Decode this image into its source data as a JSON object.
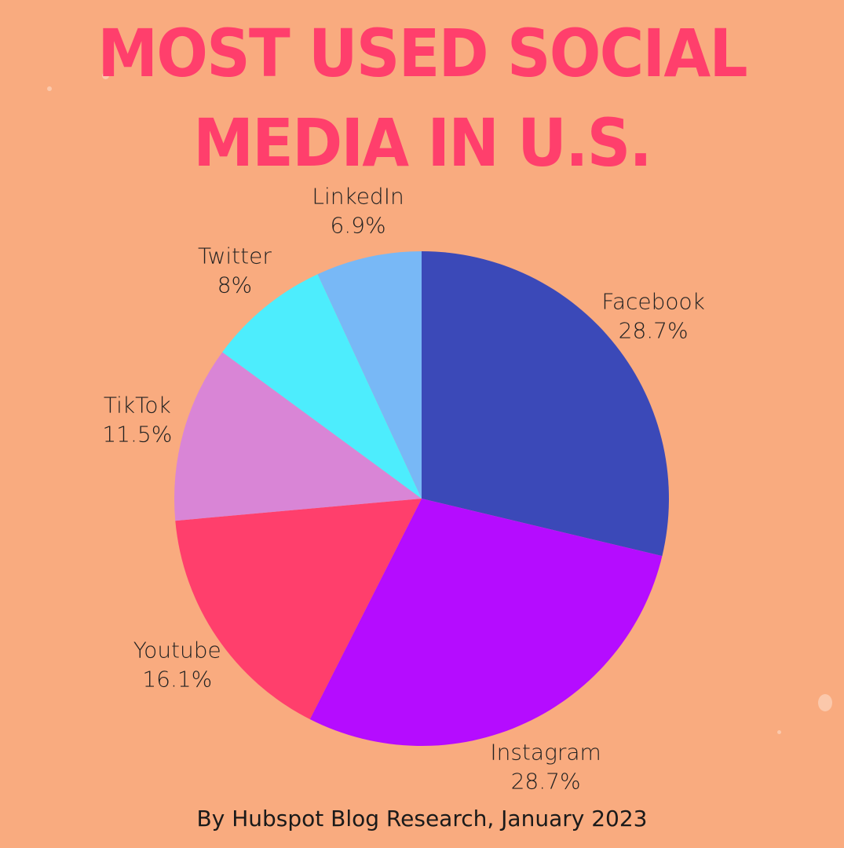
{
  "chart_data": {
    "type": "pie",
    "title": [
      "MOST USED SOCIAL",
      "MEDIA IN U.S."
    ],
    "slices": [
      {
        "name": "Facebook",
        "value": 28.7,
        "label": "28.7%",
        "color": "#3b49b8"
      },
      {
        "name": "Instagram",
        "value": 28.7,
        "label": "28.7%",
        "color": "#b50cff"
      },
      {
        "name": "Youtube",
        "value": 16.1,
        "label": "16.1%",
        "color": "#ff3f6c"
      },
      {
        "name": "TikTok",
        "value": 11.5,
        "label": "11.5%",
        "color": "#d985d6"
      },
      {
        "name": "Twitter",
        "value": 8,
        "label": "8%",
        "color": "#4dedfd"
      },
      {
        "name": "LinkedIn",
        "value": 6.9,
        "label": "6.9%",
        "color": "#78b8f6"
      }
    ],
    "start": "12 o'clock",
    "direction": "clockwise",
    "source": "By Hubspot Blog Research, January 2023"
  },
  "colors": {
    "background": "#f9ab7f",
    "title": "#ff3f6c",
    "label_text": "#222222"
  }
}
